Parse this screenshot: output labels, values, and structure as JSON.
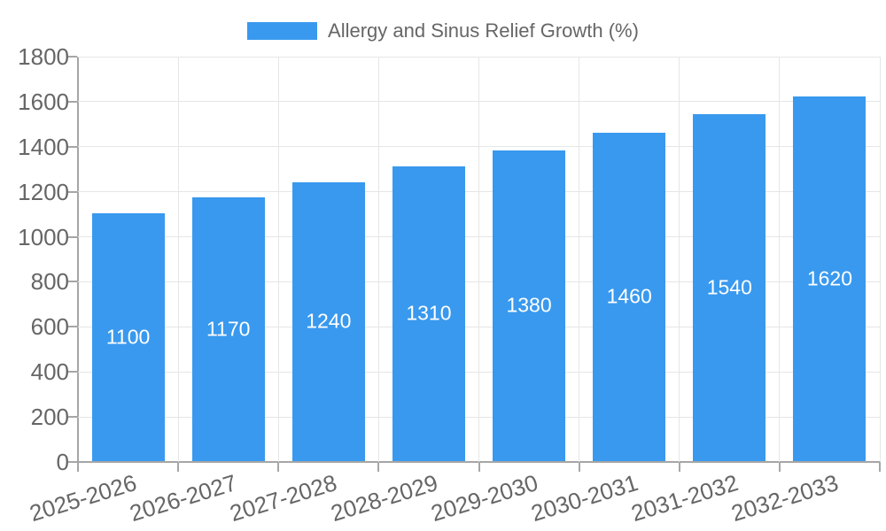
{
  "chart_data": {
    "type": "bar",
    "legend_label": "Allergy and Sinus Relief Growth (%)",
    "legend_position": "top",
    "categories": [
      "2025-2026",
      "2026-2027",
      "2027-2028",
      "2028-2029",
      "2029-2030",
      "2030-2031",
      "2031-2032",
      "2032-2033"
    ],
    "values": [
      1100,
      1170,
      1240,
      1310,
      1380,
      1460,
      1540,
      1620
    ],
    "value_labels_visible": true,
    "xlabel": "",
    "ylabel": "",
    "ylim": [
      0,
      1800
    ],
    "ytick_step": 200,
    "yticks": [
      0,
      200,
      400,
      600,
      800,
      1000,
      1200,
      1400,
      1600,
      1800
    ],
    "grid": true,
    "x_label_rotation_deg": -17,
    "colors": {
      "bar": "#3999ee",
      "grid": "#e6e6e6",
      "axis": "#a6a6a6",
      "text": "#666666",
      "value_label": "#ffffff",
      "background": "#ffffff"
    }
  }
}
